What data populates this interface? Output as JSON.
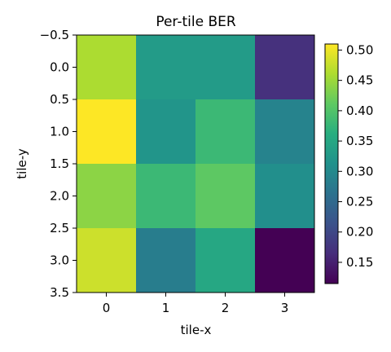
{
  "chart_data": {
    "type": "heatmap",
    "title": "Per-tile BER",
    "xlabel": "tile-x",
    "ylabel": "tile-y",
    "colormap": "viridis",
    "x_ticks": [
      "0",
      "1",
      "2",
      "3"
    ],
    "y_ticks": [
      "−0.5",
      "0.0",
      "0.5",
      "1.0",
      "1.5",
      "2.0",
      "2.5",
      "3.0",
      "3.5"
    ],
    "y_tick_values": [
      -0.5,
      0.0,
      0.5,
      1.0,
      1.5,
      2.0,
      2.5,
      3.0,
      3.5
    ],
    "xlim": [
      -0.5,
      3.5
    ],
    "ylim": [
      3.5,
      -0.5
    ],
    "vmin": 0.115,
    "vmax": 0.51,
    "colorbar_ticks": [
      "0.15",
      "0.20",
      "0.25",
      "0.30",
      "0.35",
      "0.40",
      "0.45",
      "0.50"
    ],
    "colorbar_tick_values": [
      0.15,
      0.2,
      0.25,
      0.3,
      0.35,
      0.4,
      0.45,
      0.5
    ],
    "values": [
      [
        0.46,
        0.33,
        0.33,
        0.17
      ],
      [
        0.51,
        0.32,
        0.38,
        0.29
      ],
      [
        0.44,
        0.38,
        0.41,
        0.31
      ],
      [
        0.48,
        0.28,
        0.35,
        0.115
      ]
    ]
  }
}
